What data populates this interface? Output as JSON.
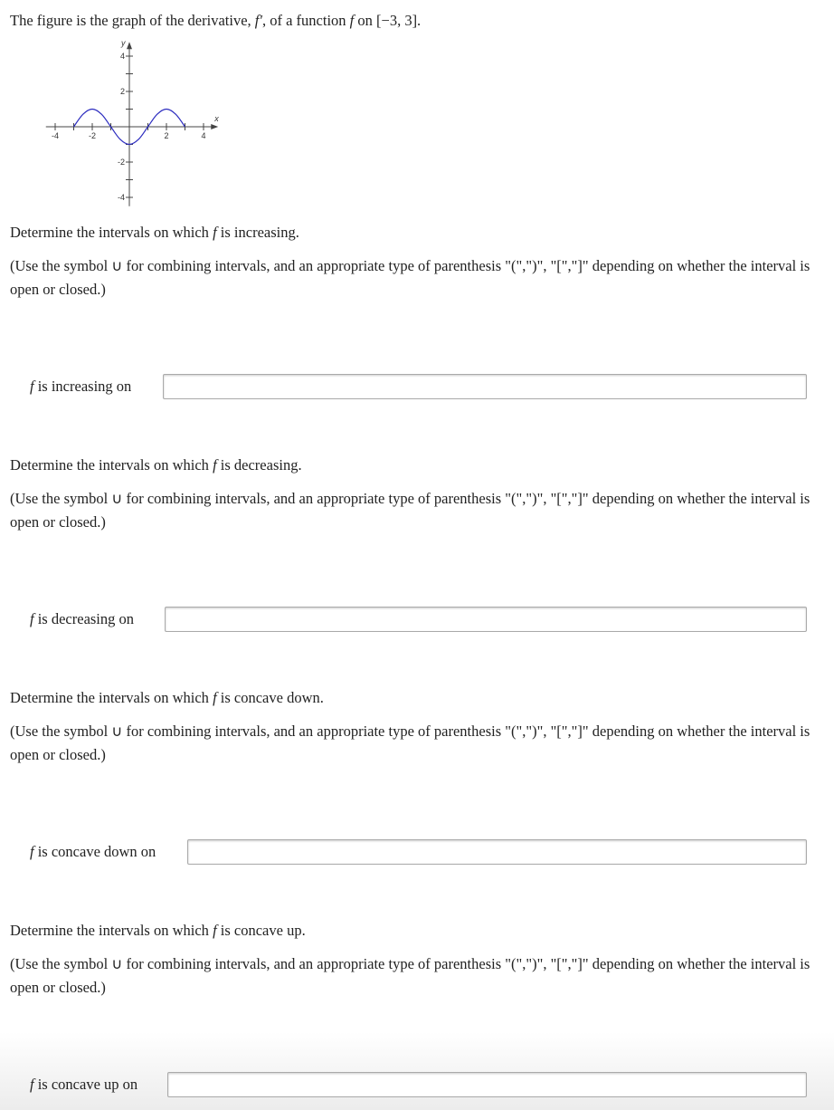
{
  "intro": [
    "The figure is the graph of the derivative, ",
    "f′",
    ", of a function ",
    "f",
    " on [−3, 3]."
  ],
  "graph": {
    "type": "line",
    "x_label": "x",
    "y_label": "y",
    "xlim": [
      -4.5,
      4.5
    ],
    "ylim": [
      -4.5,
      4.5
    ],
    "xticks": [
      -4,
      -2,
      2,
      4
    ],
    "yticks": [
      4,
      2,
      -2,
      -4
    ],
    "xticks_minor": [
      -3,
      -1,
      1,
      3
    ],
    "yticks_minor": [
      3,
      1,
      -1,
      -3
    ],
    "color": "#2b2bbf",
    "x": [
      -3,
      -2.5,
      -2,
      -1.5,
      -1,
      -0.5,
      0,
      0.5,
      1,
      1.5,
      2,
      2.5,
      3
    ],
    "values": [
      0,
      0.71,
      1,
      0.71,
      0,
      -0.71,
      -1,
      -0.71,
      0,
      0.71,
      1,
      0.71,
      0
    ]
  },
  "questions": [
    {
      "heading": [
        "Determine the intervals on which ",
        "f",
        " is increasing."
      ],
      "instruction": "(Use the symbol ∪ for combining intervals, and an appropriate type of parenthesis \"(\",\")\", \"[\",\"]\" depending on whether the interval is open or closed.)",
      "answer_label": [
        "f",
        " is increasing on"
      ]
    },
    {
      "heading": [
        "Determine the intervals on which ",
        "f",
        " is decreasing."
      ],
      "instruction": "(Use the symbol ∪ for combining intervals, and an appropriate type of parenthesis \"(\",\")\", \"[\",\"]\" depending on whether the interval is open or closed.)",
      "answer_label": [
        "f",
        " is decreasing on"
      ]
    },
    {
      "heading": [
        "Determine the intervals on which ",
        "f",
        " is concave down."
      ],
      "instruction": "(Use the symbol ∪ for combining intervals, and an appropriate type of parenthesis \"(\",\")\", \"[\",\"]\" depending on whether the interval is open or closed.)",
      "answer_label": [
        "f",
        " is concave down on"
      ]
    },
    {
      "heading": [
        "Determine the intervals on which ",
        "f",
        " is concave up."
      ],
      "instruction": "(Use the symbol ∪ for combining intervals, and an appropriate type of parenthesis \"(\",\")\", \"[\",\"]\" depending on whether the interval is open or closed.)",
      "answer_label": [
        "f",
        " is concave up on"
      ]
    }
  ]
}
